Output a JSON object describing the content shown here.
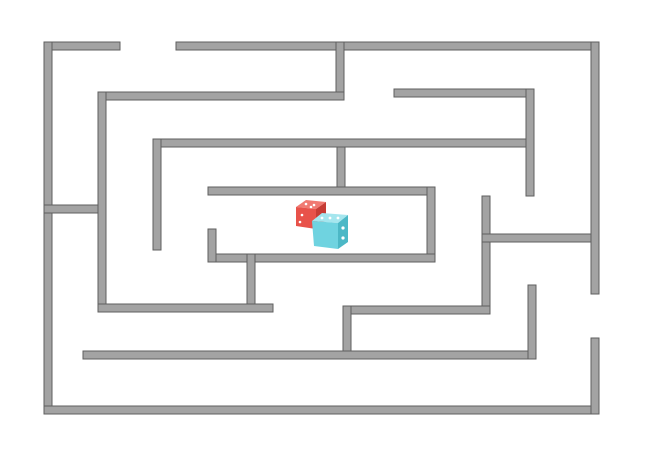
{
  "game": {
    "type": "maze",
    "colors": {
      "background": "#ffffff",
      "wall_fill": "#a3a3a3",
      "wall_stroke": "#5f5f5f"
    },
    "goal": {
      "icon": "dice-icon",
      "dice": [
        {
          "color": "#e8524a",
          "top_color": "#f07a72",
          "side_color": "#c63c35",
          "visible_pips": 5
        },
        {
          "color": "#6fd3e0",
          "top_color": "#a5e6ee",
          "side_color": "#4cb8c6",
          "visible_pips": 5
        }
      ]
    }
  }
}
